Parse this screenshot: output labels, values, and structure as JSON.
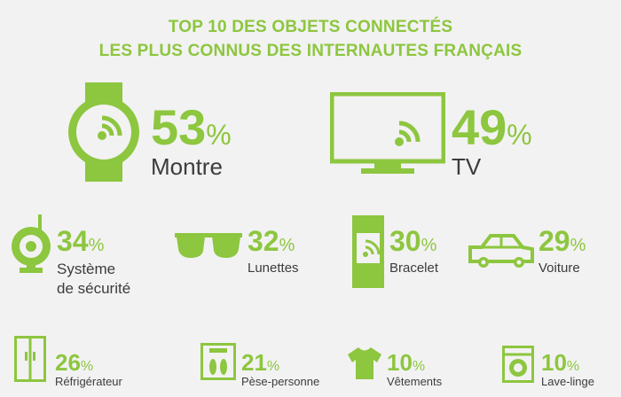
{
  "title": {
    "line1": "TOP 10 DES OBJETS CONNECTÉS",
    "line2": "LES PLUS CONNUS DES INTERNAUTES FRANÇAIS"
  },
  "accent_color": "#8dc63f",
  "text_color": "#3c3c3c",
  "percent_symbol": "%",
  "items": [
    {
      "value": "53",
      "label": "Montre",
      "icon": "watch-icon"
    },
    {
      "value": "49",
      "label": "TV",
      "icon": "tv-icon"
    },
    {
      "value": "34",
      "label_line1": "Système",
      "label_line2": "de sécurité",
      "icon": "security-camera-icon"
    },
    {
      "value": "32",
      "label": "Lunettes",
      "icon": "glasses-icon"
    },
    {
      "value": "30",
      "label": "Bracelet",
      "icon": "bracelet-icon"
    },
    {
      "value": "29",
      "label": "Voiture",
      "icon": "car-icon"
    },
    {
      "value": "26",
      "label": "Réfrigérateur",
      "icon": "fridge-icon"
    },
    {
      "value": "21",
      "label": "Pèse-personne",
      "icon": "scale-icon"
    },
    {
      "value": "10",
      "label": "Vêtements",
      "icon": "tshirt-icon"
    },
    {
      "value": "10",
      "label": "Lave-linge",
      "icon": "washing-machine-icon"
    }
  ]
}
